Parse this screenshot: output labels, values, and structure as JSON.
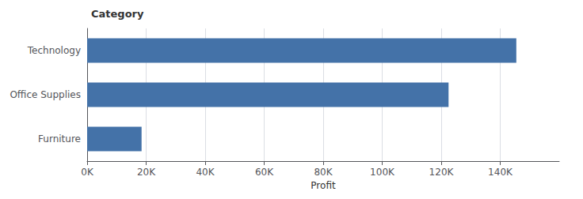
{
  "chart_data": {
    "type": "bar",
    "orientation": "horizontal",
    "title": "Category",
    "xlabel": "Profit",
    "categories": [
      "Furniture",
      "Office Supplies",
      "Technology"
    ],
    "values": [
      18451,
      122491,
      145455
    ],
    "color": "#4472a8",
    "xlim": [
      0,
      160000
    ],
    "xticks": [
      {
        "value": 0,
        "label": "0K"
      },
      {
        "value": 20000,
        "label": "20K"
      },
      {
        "value": 40000,
        "label": "40K"
      },
      {
        "value": 60000,
        "label": "60K"
      },
      {
        "value": 80000,
        "label": "80K"
      },
      {
        "value": 100000,
        "label": "100K"
      },
      {
        "value": 120000,
        "label": "120K"
      },
      {
        "value": 140000,
        "label": "140K"
      }
    ],
    "grid": true
  }
}
